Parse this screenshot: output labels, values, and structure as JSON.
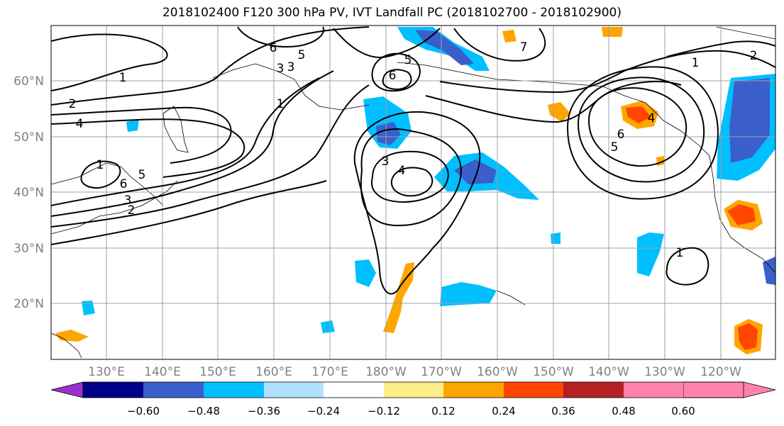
{
  "title": "2018102400 F120 300 hPa PV, IVT Landfall PC (2018102700 - 2018102900)",
  "map": {
    "lon_ticks": [
      "130°E",
      "140°E",
      "150°E",
      "160°E",
      "170°E",
      "180°W",
      "170°W",
      "160°W",
      "150°W",
      "140°W",
      "130°W",
      "120°W"
    ],
    "lat_ticks": [
      "20°N",
      "30°N",
      "40°N",
      "50°N",
      "60°N"
    ],
    "contour_labels": [
      "1",
      "2",
      "4",
      "1",
      "6",
      "5",
      "3",
      "3",
      "1",
      "2",
      "3",
      "6",
      "5",
      "6",
      "5",
      "3",
      "4",
      "1",
      "7",
      "2",
      "1",
      "6",
      "5",
      "4"
    ]
  },
  "colorbar": {
    "colors": [
      "#9932cc",
      "#00008b",
      "#3a5fcd",
      "#00bfff",
      "#b0e2ff",
      "#ffffff",
      "#ffec8b",
      "#ffa500",
      "#ff4500",
      "#b22222",
      "#ff82ab"
    ],
    "ticks": [
      "−0.60",
      "−0.48",
      "−0.36",
      "−0.24",
      "−0.12",
      "0.12",
      "0.24",
      "0.36",
      "0.48",
      "0.60"
    ]
  }
}
